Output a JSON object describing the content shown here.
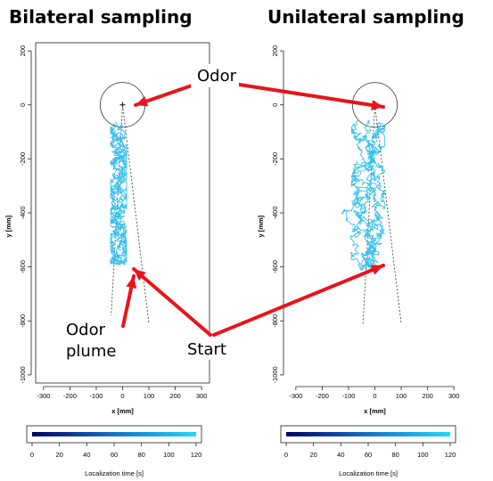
{
  "chart_data": [
    {
      "type": "line",
      "title": "Bilateral sampling",
      "xlabel": "x [mm]",
      "ylabel": "y [mm]",
      "xlim": [
        -330,
        330
      ],
      "ylim": [
        -1030,
        230
      ],
      "x_ticks": [
        "-300",
        "-200",
        "-100",
        "0",
        "100",
        "200",
        "300"
      ],
      "y_ticks": [
        "200",
        "0",
        "-200",
        "-400",
        "-600",
        "-800",
        "-1000"
      ],
      "odor_source": {
        "x": 0,
        "y": 0,
        "radius": 85
      },
      "plume_edges": [
        [
          [
            0,
            0
          ],
          [
            -45,
            -810
          ]
        ],
        [
          [
            0,
            0
          ],
          [
            100,
            -810
          ]
        ]
      ],
      "track": {
        "x_range": [
          -70,
          40
        ],
        "y_range": [
          -590,
          -70
        ],
        "color": "#35c0eb"
      },
      "colorbar": {
        "label": "Localization time [s]",
        "ticks": [
          "0",
          "20",
          "40",
          "60",
          "80",
          "100",
          "120"
        ],
        "range": [
          0,
          120
        ],
        "colors": [
          "#000060",
          "#20c8ff"
        ]
      }
    },
    {
      "type": "line",
      "title": "Unilateral sampling",
      "xlabel": "x [mm]",
      "ylabel": "y [mm]",
      "xlim": [
        -330,
        330
      ],
      "ylim": [
        -1030,
        230
      ],
      "x_ticks": [
        "-300",
        "-200",
        "-100",
        "0",
        "100",
        "200",
        "300"
      ],
      "y_ticks": [
        "200",
        "0",
        "-200",
        "-400",
        "-600",
        "-800",
        "-1000"
      ],
      "odor_source": {
        "x": 0,
        "y": 0,
        "radius": 85
      },
      "plume_edges": [
        [
          [
            0,
            0
          ],
          [
            -45,
            -810
          ]
        ],
        [
          [
            0,
            0
          ],
          [
            100,
            -810
          ]
        ]
      ],
      "track": {
        "x_range": [
          -140,
          90
        ],
        "y_range": [
          -600,
          -60
        ],
        "color": "#35c0eb"
      },
      "colorbar": {
        "label": "Localization time [s]",
        "ticks": [
          "0",
          "20",
          "40",
          "60",
          "80",
          "100",
          "120"
        ],
        "range": [
          0,
          120
        ],
        "colors": [
          "#000060",
          "#20c8ff"
        ]
      }
    }
  ],
  "annotations": {
    "odor": "Odor",
    "odor_plume_line1": "Odor",
    "odor_plume_line2": "plume",
    "start": "Start",
    "arrow_color": "#e8141b"
  }
}
